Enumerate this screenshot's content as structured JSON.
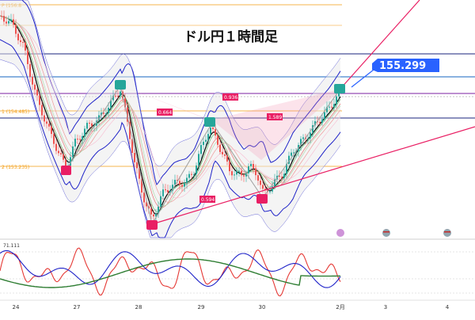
{
  "chart_data": {
    "type": "line",
    "title": "ドル円１時間足",
    "current_price": "155.299",
    "x_ticks": [
      "24",
      "27",
      "28",
      "29",
      "30",
      "2月",
      "3",
      "4"
    ],
    "fib_levels": [
      {
        "label": "P (156.8",
        "value": 156.8
      },
      {
        "label": "1 (154.485)",
        "value": 154.485
      },
      {
        "label": "2 (153.235)",
        "value": 153.235
      }
    ],
    "annotations": [
      {
        "label": "0.664",
        "value": 0.664
      },
      {
        "label": "0.936",
        "value": 0.936
      },
      {
        "label": "1.589",
        "value": 1.589
      },
      {
        "label": "0.594",
        "value": 0.594
      }
    ],
    "oscillator": {
      "label": "71.111",
      "value": 71.111
    },
    "colors": {
      "up": "#26a69a",
      "down": "#ef5350",
      "price_box": "#2962ff",
      "trend": "#e91e63",
      "fib": "#f39c12",
      "hline": "#1a237e"
    }
  }
}
